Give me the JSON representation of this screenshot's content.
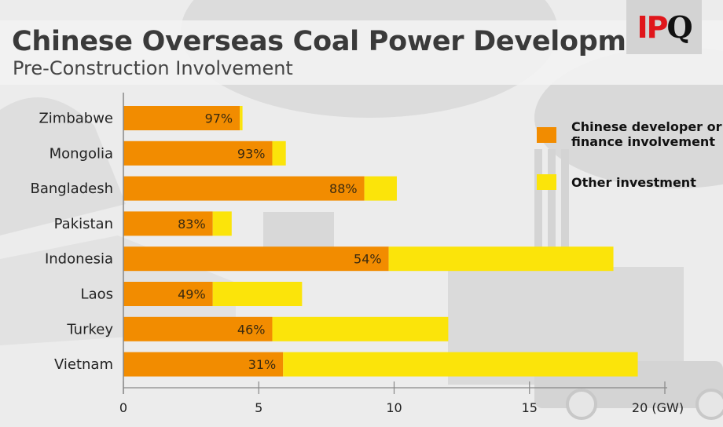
{
  "header": {
    "title": "Chinese Overseas Coal Power Development",
    "subtitle": "Pre-Construction Involvement",
    "logo_part1": "IP",
    "logo_part2": "Q"
  },
  "colors": {
    "chinese": "#f28c00",
    "other": "#fbe40a",
    "axis": "#888888",
    "logo_red": "#e0161b"
  },
  "chart_data": {
    "type": "bar",
    "orientation": "horizontal",
    "stacked": true,
    "title": "Chinese Overseas Coal Power Development",
    "subtitle": "Pre-Construction Involvement",
    "xlabel": "(GW)",
    "ylabel": "",
    "xlim": [
      0,
      20
    ],
    "xticks": [
      0,
      5,
      10,
      15,
      20
    ],
    "xtick_labels": [
      "0",
      "5",
      "10",
      "15",
      "20 (GW)"
    ],
    "grid": false,
    "legend_position": "right",
    "categories": [
      "Zimbabwe",
      "Mongolia",
      "Bangladesh",
      "Pakistan",
      "Indonesia",
      "Laos",
      "Turkey",
      "Vietnam"
    ],
    "series": [
      {
        "name": "Chinese developer or finance involvement",
        "color": "#f28c00",
        "values": [
          4.3,
          5.5,
          8.9,
          3.3,
          9.8,
          3.3,
          5.5,
          5.9
        ]
      },
      {
        "name": "Other investment",
        "color": "#fbe40a",
        "values": [
          0.1,
          0.5,
          1.2,
          0.7,
          8.3,
          3.3,
          6.5,
          13.1
        ]
      }
    ],
    "totals": [
      4.4,
      6.0,
      10.1,
      4.0,
      18.1,
      6.6,
      12.0,
      19.0
    ],
    "data_labels": [
      "97%",
      "93%",
      "88%",
      "83%",
      "54%",
      "49%",
      "46%",
      "31%"
    ]
  },
  "legend": [
    {
      "line1": "Chinese developer or",
      "line2": "finance involvement",
      "color": "#f28c00"
    },
    {
      "line1": "Other investment",
      "line2": "",
      "color": "#fbe40a"
    }
  ]
}
